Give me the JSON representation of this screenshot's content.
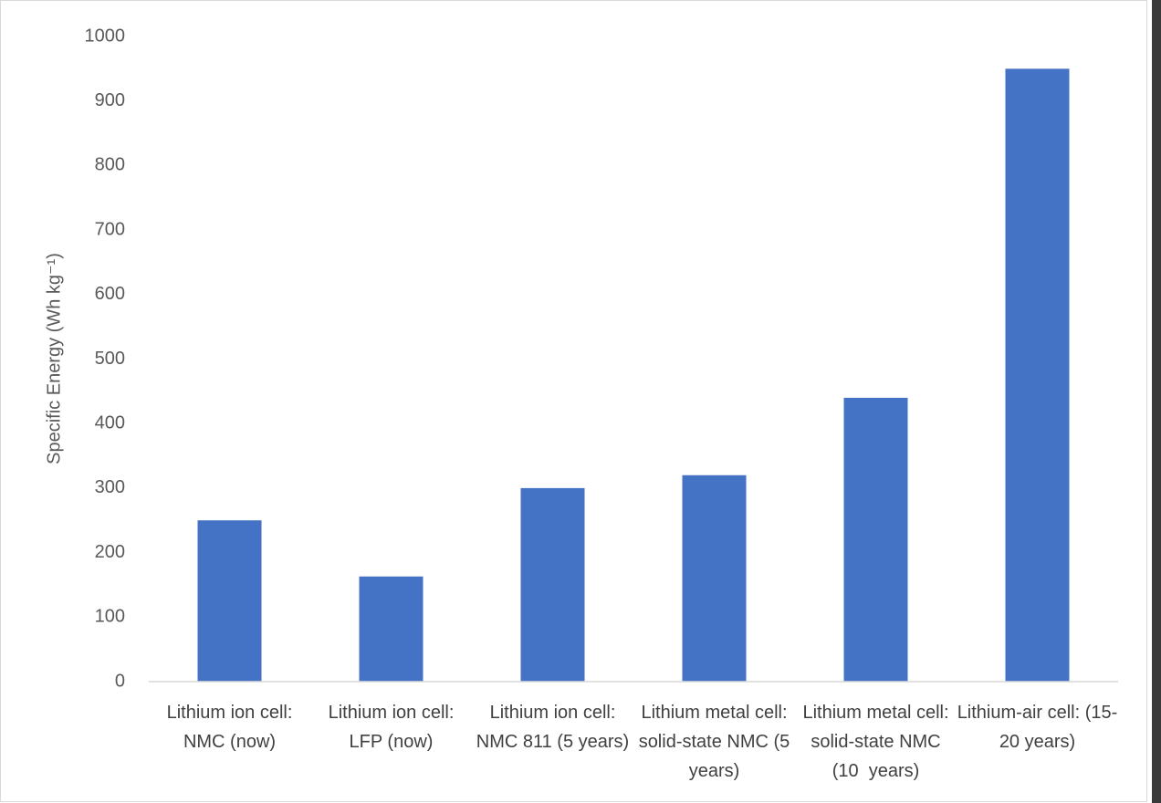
{
  "chart_data": {
    "type": "bar",
    "y_label": "Specific Energy (Wh kg⁻¹)",
    "categories": [
      "Lithium ion cell: NMC (now)",
      "Lithium ion cell: LFP (now)",
      "Lithium ion cell: NMC 811 (5 years)",
      "Lithium metal cell: solid-state NMC (5  years)",
      "Lithium metal cell: solid-state NMC (10  years)",
      "Lithium-air cell: (15-20 years)"
    ],
    "values": [
      250,
      163,
      300,
      320,
      440,
      950
    ],
    "color": "#4472c4",
    "ylim": [
      0,
      1000
    ],
    "yticks": [
      0,
      100,
      200,
      300,
      400,
      500,
      600,
      700,
      800,
      900,
      1000
    ],
    "grid": false
  }
}
